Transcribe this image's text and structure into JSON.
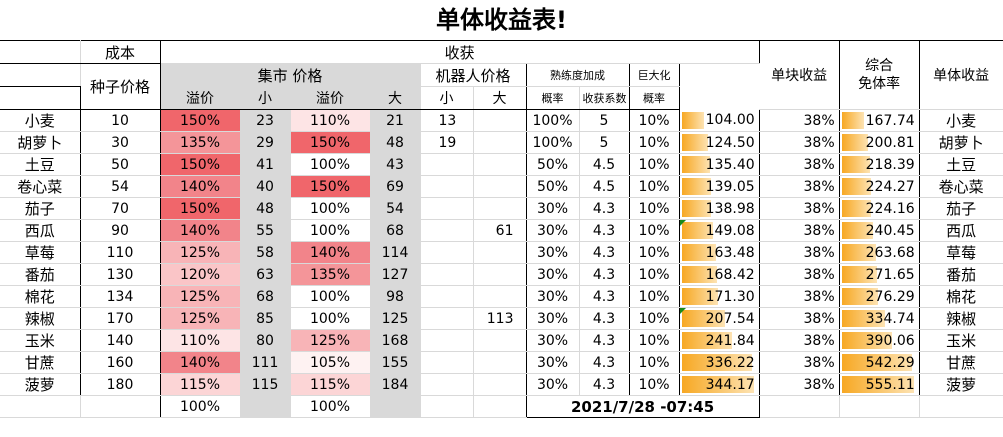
{
  "title": "单体收益表!",
  "headers": {
    "cost": "成本",
    "seed_price": "种子价格",
    "harvest": "收获",
    "market_price": "集市 价格",
    "premium": "溢价",
    "small": "小",
    "large": "大",
    "robot_price": "机器人价格",
    "proficiency_bonus": "熟练度加成",
    "probability": "概率",
    "harvest_coef": "收获系数",
    "giant": "巨大化",
    "giant_prob": "概率",
    "unit_profit": "单块收益",
    "overall_exempt_1": "综合",
    "overall_exempt_2": "免体率",
    "single_profit": "单体收益"
  },
  "rows": [
    {
      "name": "小麦",
      "seed": "10",
      "prem_s": "150%",
      "small": "23",
      "prem_l": "110%",
      "large": "21",
      "robot_s": "13",
      "robot_l": "",
      "prof_p": "100%",
      "coef": "5",
      "giant": "10%",
      "unit": "104.00",
      "exempt": "38%",
      "single": "167.74",
      "name2": "小麦",
      "unit_frac": 0.3,
      "single_frac": 0.3,
      "c1": "#f0666b",
      "c2": "#fde4e5"
    },
    {
      "name": "胡萝卜",
      "seed": "30",
      "prem_s": "135%",
      "small": "29",
      "prem_l": "150%",
      "large": "48",
      "robot_s": "19",
      "robot_l": "",
      "prof_p": "100%",
      "coef": "5",
      "giant": "10%",
      "unit": "124.50",
      "exempt": "38%",
      "single": "200.81",
      "name2": "胡萝卜",
      "unit_frac": 0.36,
      "single_frac": 0.36,
      "c1": "#f49599",
      "c2": "#f0666b"
    },
    {
      "name": "土豆",
      "seed": "50",
      "prem_s": "150%",
      "small": "41",
      "prem_l": "100%",
      "large": "43",
      "robot_s": "",
      "robot_l": "",
      "prof_p": "50%",
      "coef": "4.5",
      "giant": "10%",
      "unit": "135.40",
      "exempt": "38%",
      "single": "218.39",
      "name2": "土豆",
      "unit_frac": 0.39,
      "single_frac": 0.39,
      "c1": "#f0666b",
      "c2": "#ffffff"
    },
    {
      "name": "卷心菜",
      "seed": "54",
      "prem_s": "140%",
      "small": "40",
      "prem_l": "150%",
      "large": "69",
      "robot_s": "",
      "robot_l": "",
      "prof_p": "50%",
      "coef": "4.5",
      "giant": "10%",
      "unit": "139.05",
      "exempt": "38%",
      "single": "224.27",
      "name2": "卷心菜",
      "unit_frac": 0.4,
      "single_frac": 0.4,
      "c1": "#f2848a",
      "c2": "#f0666b"
    },
    {
      "name": "茄子",
      "seed": "70",
      "prem_s": "150%",
      "small": "48",
      "prem_l": "100%",
      "large": "54",
      "robot_s": "",
      "robot_l": "",
      "prof_p": "30%",
      "coef": "4.3",
      "giant": "10%",
      "unit": "138.98",
      "exempt": "38%",
      "single": "224.16",
      "name2": "茄子",
      "unit_frac": 0.4,
      "single_frac": 0.4,
      "c1": "#f0666b",
      "c2": "#ffffff"
    },
    {
      "name": "西瓜",
      "seed": "90",
      "prem_s": "140%",
      "small": "55",
      "prem_l": "100%",
      "large": "68",
      "robot_s": "",
      "robot_l": "61",
      "prof_p": "30%",
      "coef": "4.3",
      "giant": "10%",
      "unit": "149.08",
      "exempt": "38%",
      "single": "240.45",
      "name2": "西瓜",
      "unit_frac": 0.43,
      "single_frac": 0.43,
      "c1": "#f2848a",
      "c2": "#ffffff",
      "tri": true
    },
    {
      "name": "草莓",
      "seed": "110",
      "prem_s": "125%",
      "small": "58",
      "prem_l": "140%",
      "large": "114",
      "robot_s": "",
      "robot_l": "",
      "prof_p": "30%",
      "coef": "4.3",
      "giant": "10%",
      "unit": "163.48",
      "exempt": "38%",
      "single": "263.68",
      "name2": "草莓",
      "unit_frac": 0.47,
      "single_frac": 0.47,
      "c1": "#f8b4b7",
      "c2": "#f2848a"
    },
    {
      "name": "番茄",
      "seed": "130",
      "prem_s": "120%",
      "small": "63",
      "prem_l": "135%",
      "large": "127",
      "robot_s": "",
      "robot_l": "",
      "prof_p": "30%",
      "coef": "4.3",
      "giant": "10%",
      "unit": "168.42",
      "exempt": "38%",
      "single": "271.65",
      "name2": "番茄",
      "unit_frac": 0.49,
      "single_frac": 0.49,
      "c1": "#fac5c7",
      "c2": "#f49599"
    },
    {
      "name": "棉花",
      "seed": "134",
      "prem_s": "125%",
      "small": "68",
      "prem_l": "100%",
      "large": "98",
      "robot_s": "",
      "robot_l": "",
      "prof_p": "30%",
      "coef": "4.3",
      "giant": "10%",
      "unit": "171.30",
      "exempt": "38%",
      "single": "276.29",
      "name2": "棉花",
      "unit_frac": 0.5,
      "single_frac": 0.5,
      "c1": "#f8b4b7",
      "c2": "#ffffff"
    },
    {
      "name": "辣椒",
      "seed": "170",
      "prem_s": "125%",
      "small": "85",
      "prem_l": "100%",
      "large": "125",
      "robot_s": "",
      "robot_l": "113",
      "prof_p": "30%",
      "coef": "4.3",
      "giant": "10%",
      "unit": "207.54",
      "exempt": "38%",
      "single": "334.74",
      "name2": "辣椒",
      "unit_frac": 0.6,
      "single_frac": 0.6,
      "c1": "#f8b4b7",
      "c2": "#ffffff",
      "tri": true
    },
    {
      "name": "玉米",
      "seed": "140",
      "prem_s": "110%",
      "small": "80",
      "prem_l": "125%",
      "large": "168",
      "robot_s": "",
      "robot_l": "",
      "prof_p": "30%",
      "coef": "4.3",
      "giant": "10%",
      "unit": "241.84",
      "exempt": "38%",
      "single": "390.06",
      "name2": "玉米",
      "unit_frac": 0.7,
      "single_frac": 0.7,
      "c1": "#fde4e5",
      "c2": "#f8b4b7"
    },
    {
      "name": "甘蔗",
      "seed": "160",
      "prem_s": "140%",
      "small": "111",
      "prem_l": "105%",
      "large": "155",
      "robot_s": "",
      "robot_l": "",
      "prof_p": "30%",
      "coef": "4.3",
      "giant": "10%",
      "unit": "336.22",
      "exempt": "38%",
      "single": "542.29",
      "name2": "甘蔗",
      "unit_frac": 0.97,
      "single_frac": 0.97,
      "c1": "#f2848a",
      "c2": "#fef2f2"
    },
    {
      "name": "菠萝",
      "seed": "180",
      "prem_s": "115%",
      "small": "115",
      "prem_l": "115%",
      "large": "184",
      "robot_s": "",
      "robot_l": "",
      "prof_p": "30%",
      "coef": "4.3",
      "giant": "10%",
      "unit": "344.17",
      "exempt": "38%",
      "single": "555.11",
      "name2": "菠萝",
      "unit_frac": 1.0,
      "single_frac": 1.0,
      "c1": "#fcd5d6",
      "c2": "#fcd5d6"
    }
  ],
  "footer": {
    "prem_s": "100%",
    "prem_l": "100%",
    "timestamp": "2021/7/28 -07:45"
  }
}
